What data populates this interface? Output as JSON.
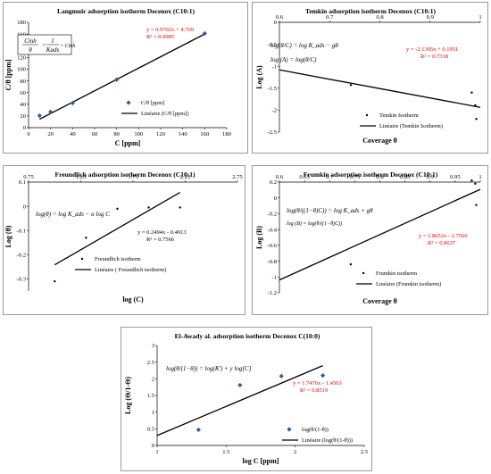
{
  "colors": {
    "marker": "#2f5d9a",
    "line": "#000000",
    "equation": "#e00000",
    "frame": "#9a9a9a"
  },
  "chart_data": [
    {
      "id": "langmuir",
      "type": "scatter",
      "title": "Langmuir adsorption isotherm   Decenox (C10:1)",
      "xlabel": "C [ppm]",
      "ylabel": "C/θ [ppm]",
      "xlim": [
        0,
        180
      ],
      "ylim": [
        0,
        180
      ],
      "xticks": [
        0,
        20,
        40,
        60,
        80,
        100,
        120,
        140,
        160,
        180
      ],
      "yticks": [
        0,
        20,
        40,
        60,
        80,
        100,
        120,
        140,
        160,
        180
      ],
      "ytick_labels": [
        "0",
        "20",
        "40",
        "60",
        "80",
        "100",
        "120",
        "140",
        "160",
        "180"
      ],
      "marker": "diamond",
      "points": [
        [
          10,
          20.5
        ],
        [
          20,
          27
        ],
        [
          40,
          42
        ],
        [
          80,
          82
        ],
        [
          160,
          161
        ]
      ],
      "fit": {
        "slope": 0.9702,
        "intercept": 4.769,
        "x_range": [
          10,
          160
        ]
      },
      "equation": "y = 0.9702x + 4.769",
      "r2": "R² = 0.9985",
      "legend": [
        "C/θ [ppm]",
        "Linéaire (C/θ [ppm])"
      ],
      "formula": {
        "lhs_top": "Cinh",
        "lhs_bottom": "θ",
        "rhs_top": "1",
        "rhs_bottom": "Kads",
        "tail": "+ Cinh"
      }
    },
    {
      "id": "temkin",
      "type": "scatter",
      "title": "Temkin adsorption isotherm   Decenox (C10:1)",
      "xlabel": "Coverage θ",
      "ylabel": "Log (A)",
      "xlim": [
        0.6,
        1.0
      ],
      "ylim": [
        -2.5,
        0
      ],
      "xticks": [
        0.6,
        0.7,
        0.8,
        0.9,
        1.0
      ],
      "xtick_labels": [
        "0.6",
        "0.7",
        "0.8",
        "0.9",
        "1"
      ],
      "yticks": [
        0,
        -0.5,
        -1,
        -1.5,
        -2,
        -2.5
      ],
      "ytick_labels": [
        "0",
        "-0.5",
        "-1",
        "-1.5",
        "-2",
        "-2.5"
      ],
      "marker": "dot",
      "points": [
        [
          0.742,
          -1.43
        ],
        [
          0.983,
          -1.6
        ],
        [
          0.99,
          -1.89
        ],
        [
          0.992,
          -2.2
        ]
      ],
      "fit": {
        "slope": -2.1305,
        "intercept": 0.1951,
        "x_range": [
          0.6,
          1.0
        ]
      },
      "equation": "y = -2.1305x + 0.1951",
      "r2": "R² = 0.7318",
      "legend": [
        "Temkin Isotherm",
        "Linéaire (Temkin Isotherm)"
      ],
      "formula": {
        "line1": "log(θ/C) = log K_ads − gθ",
        "line2": "log (A) = log(θ/C)"
      }
    },
    {
      "id": "freundlich",
      "type": "scatter",
      "title": "Freundlich adsorption isotherm   Decenox (C10:1)",
      "xlabel": "log (C)",
      "ylabel": "Log (θ)",
      "xlim": [
        0.75,
        2.75
      ],
      "ylim": [
        -0.35,
        0.1
      ],
      "xticks": [
        0.75,
        1.25,
        1.75,
        2.25,
        2.75
      ],
      "xtick_labels": [
        "0.75",
        "1.25",
        "1.75",
        "2.25",
        "2.75"
      ],
      "yticks": [
        0.1,
        0,
        -0.1,
        -0.2,
        -0.3
      ],
      "ytick_labels": [
        "0.1",
        "0",
        "-0.1",
        "-0.2",
        "-0.3"
      ],
      "marker": "dot",
      "points": [
        [
          1.0,
          -0.31
        ],
        [
          1.3,
          -0.13
        ],
        [
          1.6,
          -0.01
        ],
        [
          1.9,
          -0.005
        ],
        [
          2.2,
          -0.005
        ]
      ],
      "fit": {
        "slope": 0.2494,
        "intercept": -0.4913,
        "x_range": [
          1.0,
          2.2
        ]
      },
      "equation": "y = 0.2494x - 0.4913",
      "r2": "R² = 0.7566",
      "legend": [
        "Freundlich isotherm",
        "Linéaire ( Freundlich isotherm)"
      ],
      "formula": {
        "line1": "log(θ) = log K_ads − α log C"
      }
    },
    {
      "id": "frumkin",
      "type": "scatter",
      "title": "Frumkin adsorption isotherm   Decenox (C10:1)",
      "xlabel": "Coverage θ",
      "ylabel": "Log (B)",
      "xlim": [
        0.6,
        1.0
      ],
      "ylim": [
        -1.2,
        0.2
      ],
      "xticks": [
        0.6,
        0.65,
        0.7,
        0.75,
        0.8,
        0.85,
        0.9,
        0.95,
        1.0
      ],
      "xtick_labels": [
        "0.6",
        "0.65",
        "0.7",
        "0.75",
        "0.8",
        "0.85",
        "0.9",
        "0.95",
        "1"
      ],
      "yticks": [
        0.2,
        0,
        -0.2,
        -0.4,
        -0.6,
        -0.8,
        -1,
        -1.2
      ],
      "ytick_labels": [
        "0.2",
        "0",
        "-0.2",
        "-0.4",
        "-0.6",
        "-0.8",
        "-1",
        "-1.2"
      ],
      "marker": "dot",
      "points": [
        [
          0.742,
          -0.84
        ],
        [
          0.983,
          0.22
        ],
        [
          0.99,
          0.18
        ],
        [
          0.992,
          -0.09
        ]
      ],
      "fit": {
        "slope": 2.8652,
        "intercept": -2.7566,
        "x_range": [
          0.6,
          1.0
        ]
      },
      "equation": "y = 2.8652x - 2.7566",
      "r2": "R² = 0.8637",
      "legend": [
        "Frumkin isotherm",
        "Linéaire (Frumkin isotherm)"
      ],
      "formula": {
        "line1": "log(θ/((1−θ)C)) = log K_ads + gθ",
        "line2": "log (B) = log(θ/((1−θ)C))"
      }
    },
    {
      "id": "elawady",
      "type": "scatter",
      "title": "El-Awady al. adsorption isotherm   Decenox C(10:0)",
      "xlabel": "log C [ppm]",
      "ylabel": "Log (Θ/1-Θ)",
      "xlim": [
        1.0,
        2.5
      ],
      "ylim": [
        0,
        3
      ],
      "xticks": [
        1,
        1.5,
        2,
        2.5
      ],
      "xtick_labels": [
        "1",
        "1.5",
        "2",
        "2.5"
      ],
      "yticks": [
        0,
        0.5,
        1,
        1.5,
        2,
        2.5,
        3
      ],
      "ytick_labels": [
        "0",
        "0.5",
        "1",
        "1.5",
        "2",
        "2.5",
        "3"
      ],
      "marker": "diamond",
      "points": [
        [
          1.3,
          0.47
        ],
        [
          1.6,
          1.81
        ],
        [
          1.9,
          2.08
        ],
        [
          2.2,
          2.1
        ]
      ],
      "fit": {
        "slope": 1.7476,
        "intercept": -1.4503,
        "x_range": [
          1.0,
          2.2
        ]
      },
      "equation": "y = 1.7476x - 1.4503",
      "r2": "R² = 0.8519",
      "legend": [
        "log(θ/(1-θ))",
        "Linéaire (log(θ/(1-θ)))"
      ],
      "formula": {
        "line1": "log(θ/(1−θ)) = log(K') + y log[C]"
      }
    }
  ]
}
